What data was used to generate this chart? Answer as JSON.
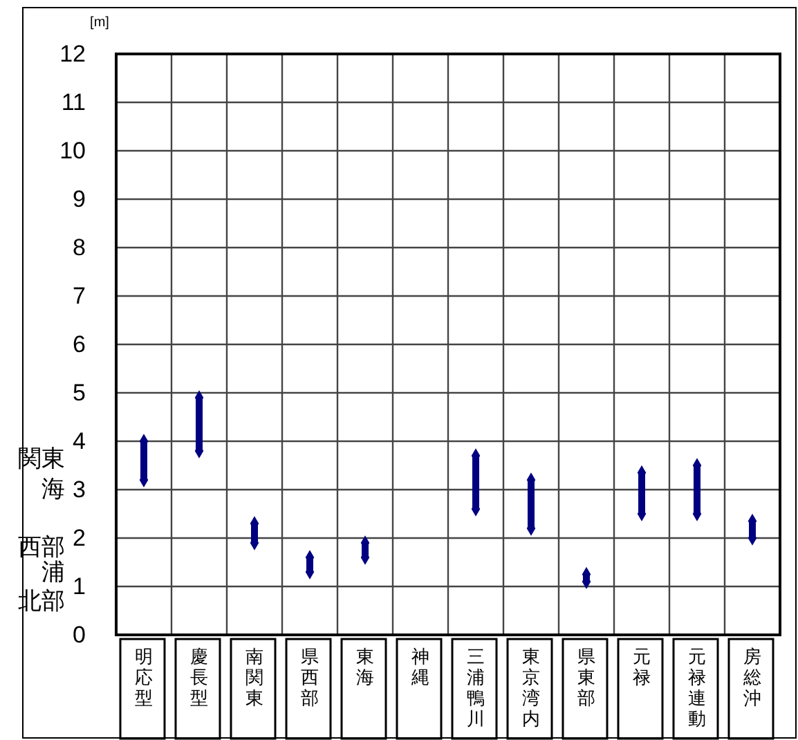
{
  "chart_data": {
    "type": "bar",
    "ylabel": "[m]",
    "categories": [
      "明応型",
      "慶長型",
      "南関東",
      "県西部",
      "東海",
      "神縄",
      "三浦鴨川",
      "東京湾内",
      "県東部",
      "元禄",
      "元禄連動",
      "房総沖"
    ],
    "base": [
      3.2,
      3.8,
      1.9,
      1.3,
      1.6,
      null,
      2.6,
      2.2,
      1.1,
      2.5,
      2.5,
      2.0
    ],
    "values": [
      0.8,
      1.1,
      0.4,
      0.3,
      0.3,
      null,
      1.1,
      1.0,
      0.15,
      0.85,
      1.0,
      0.35
    ],
    "color": "#000080",
    "marker": "diamond",
    "ylim": [
      0,
      12
    ],
    "yticks": [
      0,
      1,
      2,
      3,
      4,
      5,
      6,
      7,
      8,
      9,
      10,
      11,
      12
    ],
    "grid": true,
    "annotations": [
      "関東",
      "海",
      "西部",
      "浦",
      "北部"
    ]
  }
}
